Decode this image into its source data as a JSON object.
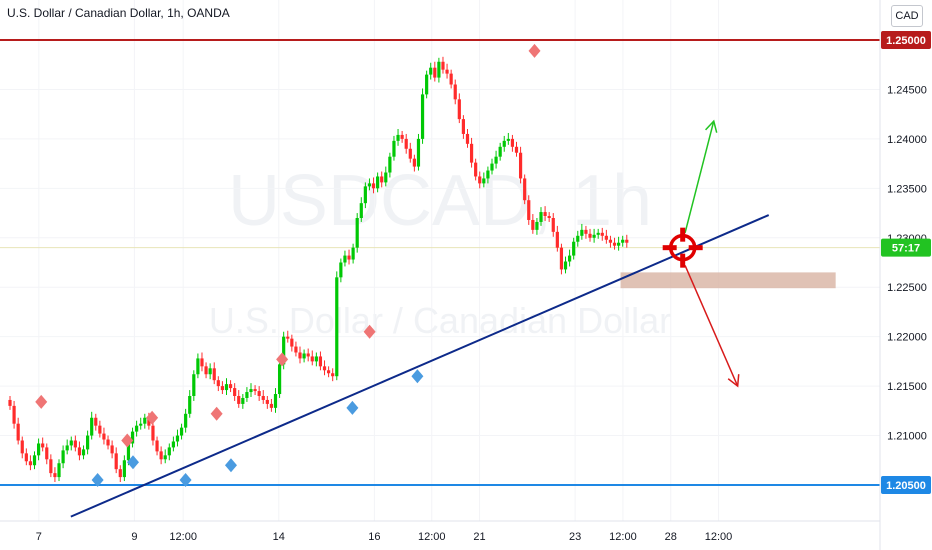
{
  "header": {
    "title": "U.S. Dollar / Canadian Dollar, 1h, OANDA",
    "currency": "CAD"
  },
  "watermark": {
    "symbol": "USDCAD, 1h",
    "name": "U.S. Dollar / Canadian Dollar"
  },
  "colors": {
    "up": "#26a69a",
    "candle_up": "#00c805",
    "candle_down": "#ff2b2b",
    "resistance": "#b71c1c",
    "support": "#1e88e5",
    "trendline": "#0d2a8a",
    "pivot_high": "#ef7575",
    "pivot_low": "#4a9be0",
    "zone": "#d8b3a3",
    "target": "#e00000",
    "arrow_up": "#22c322",
    "arrow_down": "#d81b1b",
    "current_price": "#22c322"
  },
  "chart_data": {
    "type": "candlestick",
    "symbol": "USDCAD",
    "timeframe": "1h",
    "ylim": [
      1.2005,
      1.253
    ],
    "y_ticks": [
      "1.24500",
      "1.24000",
      "1.23500",
      "1.23000",
      "1.22500",
      "1.22000",
      "1.21500",
      "1.21000"
    ],
    "x_ticks": [
      {
        "label": "7",
        "x": 0.08
      },
      {
        "label": "9",
        "x": 2.08
      },
      {
        "label": "12:00",
        "x": 3.1
      },
      {
        "label": "14",
        "x": 5.1
      },
      {
        "label": "16",
        "x": 7.1
      },
      {
        "label": "12:00",
        "x": 8.3
      },
      {
        "label": "21",
        "x": 9.3
      },
      {
        "label": "23",
        "x": 11.3
      },
      {
        "label": "12:00",
        "x": 12.3
      },
      {
        "label": "28",
        "x": 13.3
      },
      {
        "label": "12:00",
        "x": 14.3
      }
    ],
    "closes": [
      1.213,
      1.2112,
      1.2095,
      1.2082,
      1.2074,
      1.207,
      1.208,
      1.2092,
      1.2088,
      1.2076,
      1.2062,
      1.2058,
      1.2072,
      1.2085,
      1.209,
      1.2095,
      1.2088,
      1.208,
      1.2086,
      1.21,
      1.2118,
      1.211,
      1.2102,
      1.2096,
      1.209,
      1.2082,
      1.2066,
      1.2058,
      1.2075,
      1.2092,
      1.2104,
      1.211,
      1.2112,
      1.2118,
      1.211,
      1.2095,
      1.2084,
      1.2076,
      1.208,
      1.2088,
      1.2094,
      1.21,
      1.2108,
      1.2122,
      1.214,
      1.2162,
      1.2178,
      1.217,
      1.2162,
      1.2168,
      1.2156,
      1.215,
      1.2146,
      1.2152,
      1.2148,
      1.214,
      1.2132,
      1.2138,
      1.2144,
      1.2147,
      1.2145,
      1.214,
      1.2136,
      1.2132,
      1.2128,
      1.2142,
      1.2172,
      1.22,
      1.2198,
      1.219,
      1.2184,
      1.2178,
      1.2183,
      1.218,
      1.2175,
      1.218,
      1.217,
      1.2166,
      1.2163,
      1.216,
      1.226,
      1.2275,
      1.2282,
      1.2278,
      1.229,
      1.232,
      1.2335,
      1.2352,
      1.2355,
      1.235,
      1.2362,
      1.2356,
      1.2366,
      1.2382,
      1.2398,
      1.2404,
      1.24,
      1.239,
      1.238,
      1.2372,
      1.24,
      1.2445,
      1.2465,
      1.2472,
      1.2462,
      1.2478,
      1.247,
      1.2466,
      1.2455,
      1.244,
      1.242,
      1.2405,
      1.2395,
      1.2376,
      1.2362,
      1.2355,
      1.236,
      1.2368,
      1.2375,
      1.2382,
      1.2392,
      1.2398,
      1.24,
      1.2392,
      1.2386,
      1.236,
      1.2338,
      1.2318,
      1.2308,
      1.2316,
      1.2326,
      1.2322,
      1.232,
      1.2306,
      1.229,
      1.2268,
      1.2276,
      1.2282,
      1.2296,
      1.2302,
      1.2308,
      1.2304,
      1.23,
      1.2303,
      1.2305,
      1.2302,
      1.2298,
      1.2295,
      1.2292,
      1.2295,
      1.2298,
      1.2295
    ],
    "series": [
      {
        "name": "trendline",
        "points": [
          [
            0.75,
            1.2018
          ],
          [
            15.35,
            1.2323
          ]
        ]
      }
    ],
    "levels": [
      {
        "label": "1.25000",
        "value": 1.25
      },
      {
        "label": "1.20500",
        "value": 1.205
      },
      {
        "label": "57:17",
        "value": 1.229
      }
    ],
    "zone": {
      "x_start": 12.25,
      "x_end": 16.75,
      "y_low": 1.2249,
      "y_high": 1.2265
    },
    "pivot_highs": [
      [
        0.13,
        1.2134
      ],
      [
        1.93,
        1.2095
      ],
      [
        2.45,
        1.2118
      ],
      [
        3.8,
        1.2122
      ],
      [
        5.17,
        1.2177
      ],
      [
        7.0,
        1.2205
      ],
      [
        10.45,
        1.2489
      ]
    ],
    "pivot_lows": [
      [
        1.31,
        1.2055
      ],
      [
        2.05,
        1.2073
      ],
      [
        3.15,
        1.2055
      ],
      [
        4.1,
        1.207
      ],
      [
        6.64,
        1.2128
      ],
      [
        8.0,
        1.216
      ]
    ],
    "target": [
      13.55,
      1.229
    ],
    "arrows": [
      {
        "from": [
          13.6,
          1.2305
        ],
        "to": [
          14.2,
          1.2418
        ]
      },
      {
        "from": [
          13.6,
          1.2272
        ],
        "to": [
          14.7,
          1.215
        ]
      }
    ]
  }
}
